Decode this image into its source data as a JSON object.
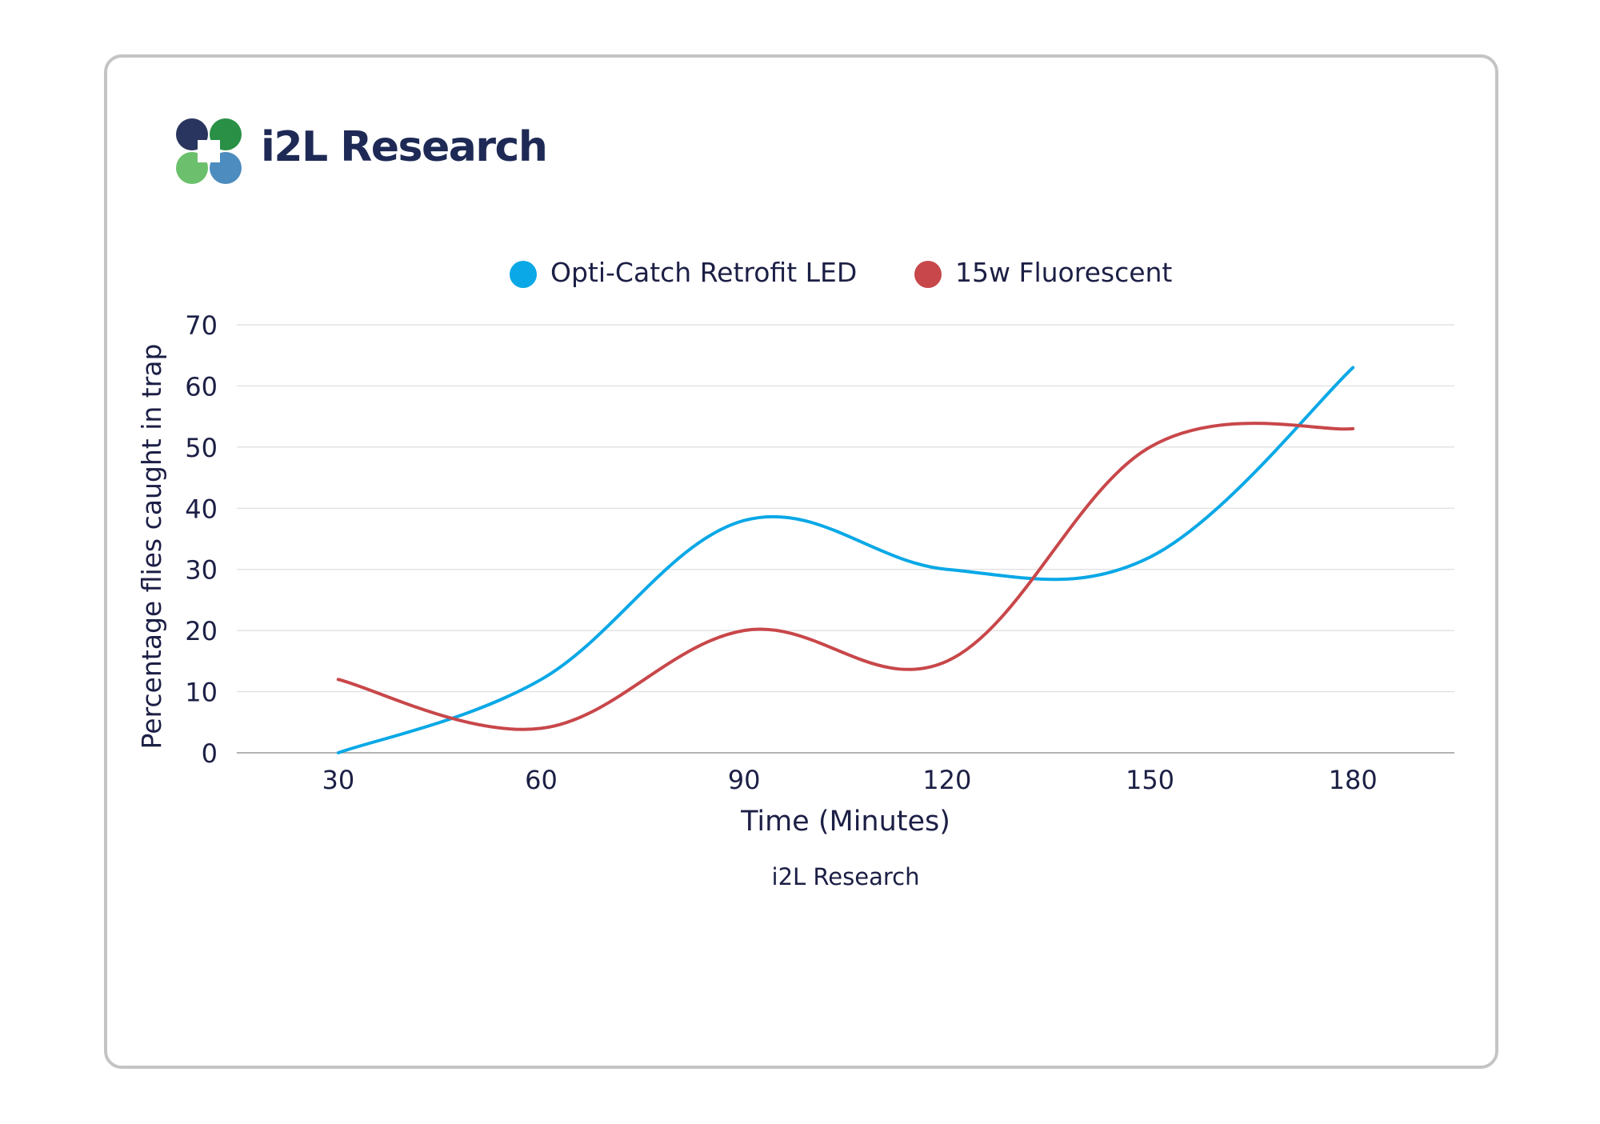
{
  "brand": {
    "name": "i2L Research",
    "colors": {
      "navy": "#1e2a55",
      "green": "#1e8a3c",
      "light_green": "#5cb85c",
      "blue": "#3a7fb8"
    }
  },
  "chart_data": {
    "type": "line",
    "smooth": true,
    "title": "",
    "xlabel": "Time (Minutes)",
    "ylabel": "Percentage flies caught in trap",
    "caption": "i2L Research",
    "x": [
      30,
      60,
      90,
      120,
      150,
      180
    ],
    "x_tick_labels": [
      "30",
      "60",
      "90",
      "120",
      "150",
      "180"
    ],
    "y_ticks": [
      0,
      10,
      20,
      30,
      40,
      50,
      60,
      70
    ],
    "y_tick_labels": [
      "0",
      "10",
      "20",
      "30",
      "40",
      "50",
      "60",
      "70"
    ],
    "ylim": [
      0,
      70
    ],
    "grid": "horizontal",
    "legend": "top-center",
    "series": [
      {
        "name": "Opti-Catch Retrofit LED",
        "color": "#0aa8e6",
        "values": [
          0,
          12,
          38,
          30,
          32,
          63
        ]
      },
      {
        "name": "15w Fluorescent",
        "color": "#c8474a",
        "values": [
          12,
          4,
          20,
          15,
          50,
          53
        ]
      }
    ]
  }
}
